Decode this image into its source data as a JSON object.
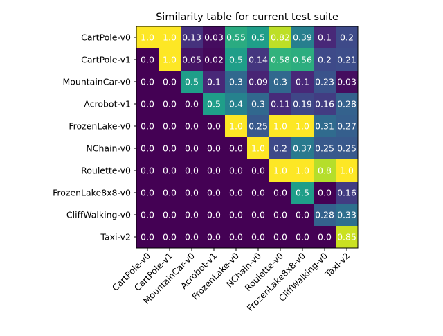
{
  "chart_data": {
    "type": "heatmap",
    "title": "Similarity table for current test suite",
    "xlabel": "",
    "ylabel": "",
    "row_labels": [
      "CartPole-v0",
      "CartPole-v1",
      "MountainCar-v0",
      "Acrobot-v1",
      "FrozenLake-v0",
      "NChain-v0",
      "Roulette-v0",
      "FrozenLake8x8-v0",
      "CliffWalking-v0",
      "Taxi-v2"
    ],
    "col_labels": [
      "CartPole-v0",
      "CartPole-v1",
      "MountainCar-v0",
      "Acrobot-v1",
      "FrozenLake-v0",
      "NChain-v0",
      "Roulette-v0",
      "FrozenLake8x8-v0",
      "CliffWalking-v0",
      "Taxi-v2"
    ],
    "values": [
      [
        1.0,
        1.0,
        0.13,
        0.03,
        0.55,
        0.5,
        0.82,
        0.39,
        0.1,
        0.2
      ],
      [
        0.0,
        1.0,
        0.05,
        0.02,
        0.5,
        0.14,
        0.58,
        0.56,
        0.2,
        0.21
      ],
      [
        0.0,
        0.0,
        0.5,
        0.1,
        0.3,
        0.09,
        0.3,
        0.1,
        0.23,
        0.03
      ],
      [
        0.0,
        0.0,
        0.0,
        0.5,
        0.4,
        0.3,
        0.11,
        0.19,
        0.16,
        0.28
      ],
      [
        0.0,
        0.0,
        0.0,
        0.0,
        1.0,
        0.25,
        1.0,
        1.0,
        0.31,
        0.27
      ],
      [
        0.0,
        0.0,
        0.0,
        0.0,
        0.0,
        1.0,
        0.2,
        0.37,
        0.25,
        0.25
      ],
      [
        0.0,
        0.0,
        0.0,
        0.0,
        0.0,
        0.0,
        1.0,
        1.0,
        0.8,
        1.0
      ],
      [
        0.0,
        0.0,
        0.0,
        0.0,
        0.0,
        0.0,
        0.0,
        0.5,
        0.0,
        0.16
      ],
      [
        0.0,
        0.0,
        0.0,
        0.0,
        0.0,
        0.0,
        0.0,
        0.0,
        0.28,
        0.33
      ],
      [
        0.0,
        0.0,
        0.0,
        0.0,
        0.0,
        0.0,
        0.0,
        0.0,
        0.0,
        0.85
      ]
    ],
    "cell_labels": [
      [
        "1.0",
        "1.0",
        "0.13",
        "0.03",
        "0.55",
        "0.5",
        "0.82",
        "0.39",
        "0.1",
        "0.2"
      ],
      [
        "0.0",
        "1.0",
        "0.05",
        "0.02",
        "0.5",
        "0.14",
        "0.58",
        "0.56",
        "0.2",
        "0.21"
      ],
      [
        "0.0",
        "0.0",
        "0.5",
        "0.1",
        "0.3",
        "0.09",
        "0.3",
        "0.1",
        "0.23",
        "0.03"
      ],
      [
        "0.0",
        "0.0",
        "0.0",
        "0.5",
        "0.4",
        "0.3",
        "0.11",
        "0.19",
        "0.16",
        "0.28"
      ],
      [
        "0.0",
        "0.0",
        "0.0",
        "0.0",
        "1.0",
        "0.25",
        "1.0",
        "1.0",
        "0.31",
        "0.27"
      ],
      [
        "0.0",
        "0.0",
        "0.0",
        "0.0",
        "0.0",
        "1.0",
        "0.2",
        "0.37",
        "0.25",
        "0.25"
      ],
      [
        "0.0",
        "0.0",
        "0.0",
        "0.0",
        "0.0",
        "0.0",
        "1.0",
        "1.0",
        "0.8",
        "1.0"
      ],
      [
        "0.0",
        "0.0",
        "0.0",
        "0.0",
        "0.0",
        "0.0",
        "0.0",
        "0.5",
        "0.0",
        "0.16"
      ],
      [
        "0.0",
        "0.0",
        "0.0",
        "0.0",
        "0.0",
        "0.0",
        "0.0",
        "0.0",
        "0.28",
        "0.33"
      ],
      [
        "0.0",
        "0.0",
        "0.0",
        "0.0",
        "0.0",
        "0.0",
        "0.0",
        "0.0",
        "0.0",
        "0.85"
      ]
    ],
    "vmin": 0,
    "vmax": 1,
    "colormap": "viridis",
    "cell_text_color": "#ffffff",
    "grid": false,
    "legend": "none"
  }
}
